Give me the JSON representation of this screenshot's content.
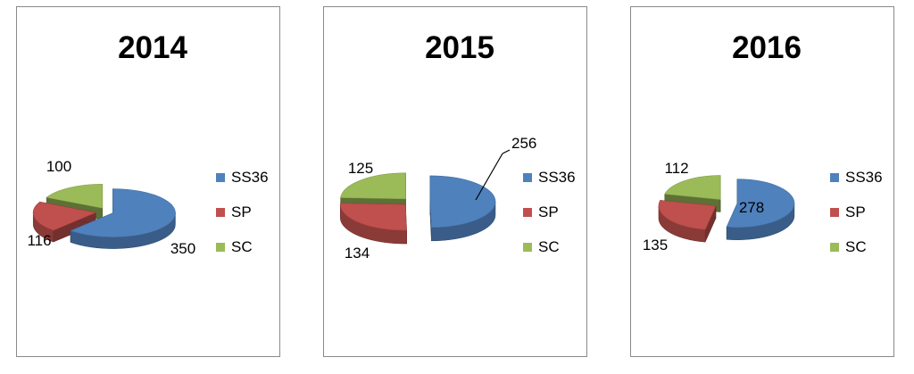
{
  "colors": {
    "SS36": "#4f81bd",
    "SP": "#c0504d",
    "SC": "#9bbb59"
  },
  "chart_data": [
    {
      "type": "pie",
      "title": "2014",
      "categories": [
        "SS36",
        "SP",
        "SC"
      ],
      "values": [
        350,
        116,
        100
      ],
      "labels": [
        "350",
        "116",
        "100"
      ],
      "legend": "right",
      "exploded": true,
      "style": "3d"
    },
    {
      "type": "pie",
      "title": "2015",
      "categories": [
        "SS36",
        "SP",
        "SC"
      ],
      "values": [
        256,
        134,
        125
      ],
      "labels": [
        "256",
        "134",
        "125"
      ],
      "legend": "right",
      "exploded": true,
      "style": "3d"
    },
    {
      "type": "pie",
      "title": "2016",
      "categories": [
        "SS36",
        "SP",
        "SC"
      ],
      "values": [
        278,
        135,
        112
      ],
      "labels": [
        "278",
        "135",
        "112"
      ],
      "legend": "right",
      "exploded": true,
      "style": "3d"
    }
  ]
}
